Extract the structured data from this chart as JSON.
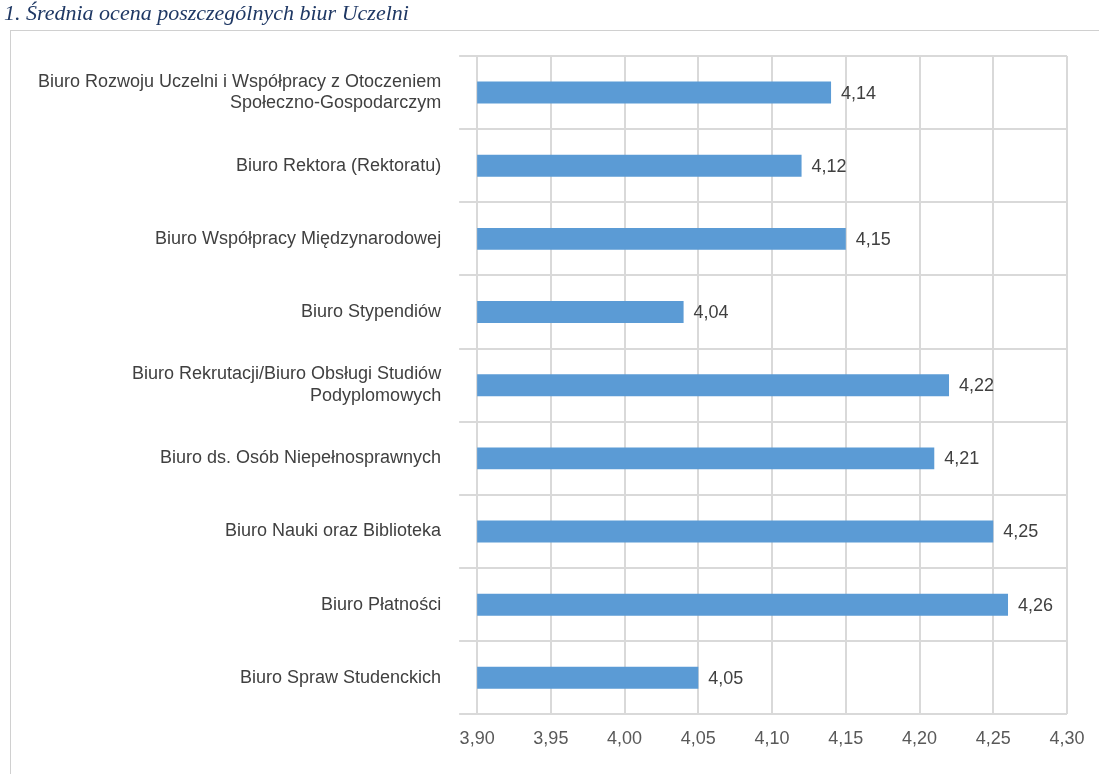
{
  "chart_data": {
    "type": "bar",
    "orientation": "horizontal",
    "title": "1. Średnia ocena poszczególnych biur Uczelni",
    "categories": [
      "Biuro Rozwoju Uczelni i Współpracy z Otoczeniem Społeczno-Gospodarczym",
      "Biuro Rektora (Rektoratu)",
      "Biuro Współpracy Międzynarodowej",
      "Biuro Stypendiów",
      "Biuro Rekrutacji/Biuro Obsługi Studiów Podyplomowych",
      "Biuro ds. Osób Niepełnosprawnych",
      "Biuro Nauki oraz Biblioteka",
      "Biuro Płatności",
      "Biuro Spraw Studenckich"
    ],
    "values": [
      4.14,
      4.12,
      4.15,
      4.04,
      4.22,
      4.21,
      4.25,
      4.26,
      4.05
    ],
    "value_labels": [
      "4,14",
      "4,12",
      "4,15",
      "4,04",
      "4,22",
      "4,21",
      "4,25",
      "4,26",
      "4,05"
    ],
    "color": "#5b9bd5",
    "xlim": [
      3.9,
      4.3
    ],
    "xticks": [
      {
        "value": 3.9,
        "label": "3,90"
      },
      {
        "value": 3.95,
        "label": "3,95"
      },
      {
        "value": 4.0,
        "label": "4,00"
      },
      {
        "value": 4.05,
        "label": "4,05"
      },
      {
        "value": 4.1,
        "label": "4,10"
      },
      {
        "value": 4.15,
        "label": "4,15"
      },
      {
        "value": 4.2,
        "label": "4,20"
      },
      {
        "value": 4.25,
        "label": "4,25"
      },
      {
        "value": 4.3,
        "label": "4,30"
      }
    ],
    "grid": true
  }
}
